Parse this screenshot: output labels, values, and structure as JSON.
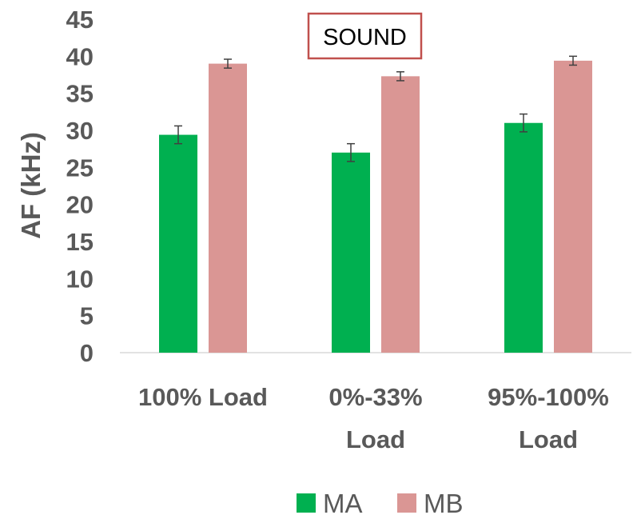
{
  "chart_data": {
    "type": "bar",
    "title": "SOUND",
    "ylabel": "AF (kHz)",
    "xlabel": "",
    "ylim": [
      0,
      45
    ],
    "yticks": [
      0,
      5,
      10,
      15,
      20,
      25,
      30,
      35,
      40,
      45
    ],
    "categories": [
      [
        "100% Load"
      ],
      [
        "0%-33%",
        "Load"
      ],
      [
        "95%-100%",
        "Load"
      ]
    ],
    "series": [
      {
        "name": "MA",
        "color": "#00b050",
        "values": [
          29.4,
          27.0,
          31.0
        ],
        "errors": [
          1.2,
          1.2,
          1.2
        ]
      },
      {
        "name": "MB",
        "color": "#da9694",
        "values": [
          39.0,
          37.3,
          39.4
        ],
        "errors": [
          0.6,
          0.6,
          0.6
        ]
      }
    ],
    "grid": false,
    "legend_position": "bottom",
    "title_border_color": "#c0504d"
  }
}
